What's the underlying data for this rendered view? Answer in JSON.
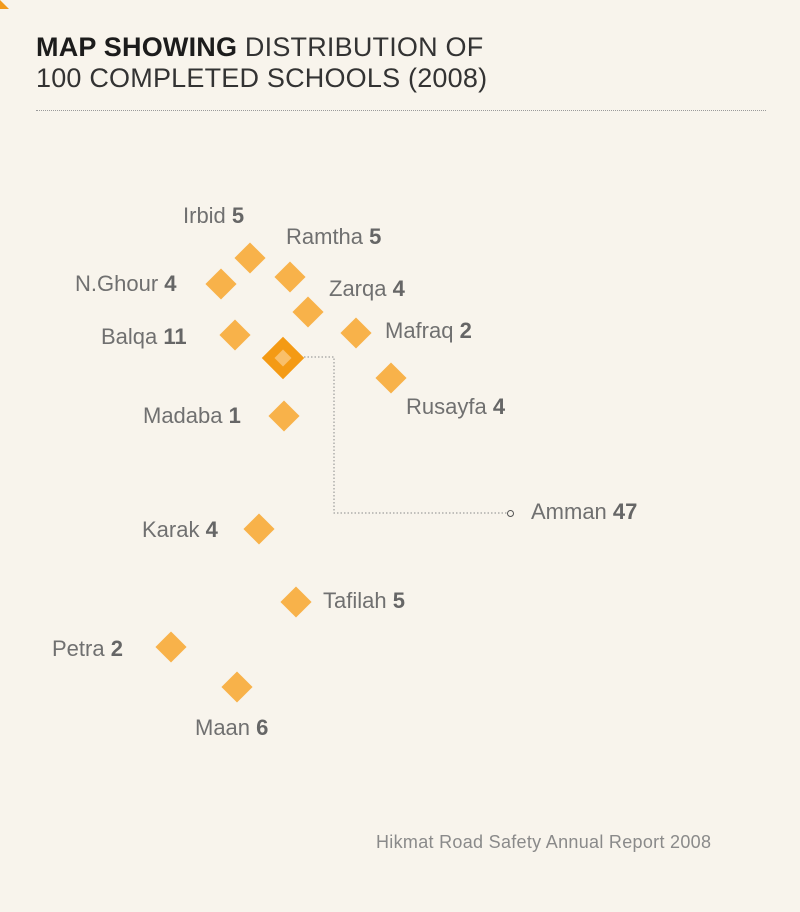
{
  "title": {
    "bold": "MAP SHOWING",
    "rest": "DISTRIBUTION OF",
    "line2": "100 COMPLETED SCHOOLS (2008)"
  },
  "cities": {
    "irbid": {
      "name": "Irbid",
      "count": "5"
    },
    "ramtha": {
      "name": "Ramtha",
      "count": "5"
    },
    "nghour": {
      "name": "N.Ghour",
      "count": "4"
    },
    "zarqa": {
      "name": "Zarqa",
      "count": "4"
    },
    "balqa": {
      "name": "Balqa",
      "count": "11"
    },
    "mafraq": {
      "name": "Mafraq",
      "count": "2"
    },
    "rusayfa": {
      "name": "Rusayfa",
      "count": "4"
    },
    "madaba": {
      "name": "Madaba",
      "count": "1"
    },
    "amman": {
      "name": "Amman",
      "count": "47"
    },
    "karak": {
      "name": "Karak",
      "count": "4"
    },
    "tafilah": {
      "name": "Tafilah",
      "count": "5"
    },
    "petra": {
      "name": "Petra",
      "count": "2"
    },
    "maan": {
      "name": "Maan",
      "count": "6"
    }
  },
  "source": "Hikmat Road Safety Annual Report 2008",
  "colors": {
    "marker": "#f8b24a",
    "marker_large": "#f49a14",
    "background": "#f8f4ec"
  }
}
